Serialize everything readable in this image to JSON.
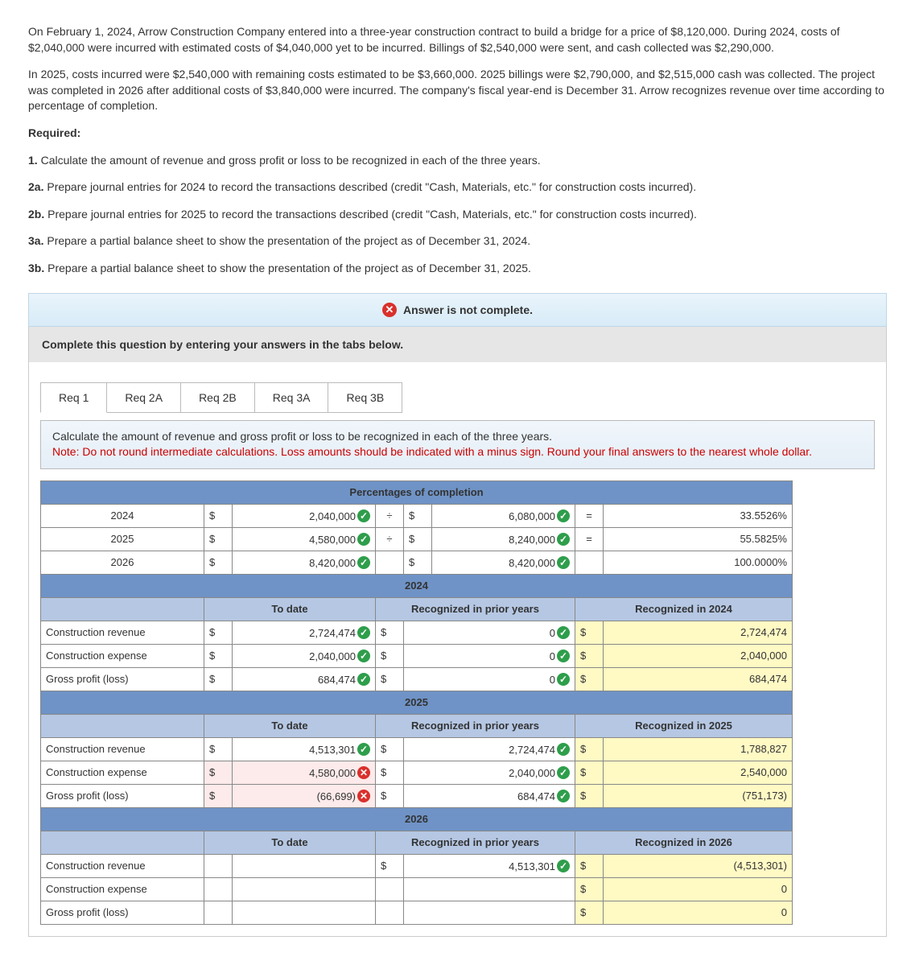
{
  "problem": {
    "p1": "On February 1, 2024, Arrow Construction Company entered into a three-year construction contract to build a bridge for a price of $8,120,000. During 2024, costs of $2,040,000 were incurred with estimated costs of $4,040,000 yet to be incurred. Billings of $2,540,000 were sent, and cash collected was $2,290,000.",
    "p2": "In 2025, costs incurred were $2,540,000 with remaining costs estimated to be $3,660,000. 2025 billings were $2,790,000, and $2,515,000 cash was collected. The project was completed in 2026 after additional costs of $3,840,000 were incurred. The company's fiscal year-end is December 31. Arrow recognizes revenue over time according to percentage of completion.",
    "req_label": "Required:",
    "reqs": [
      "1. Calculate the amount of revenue and gross profit or loss to be recognized in each of the three years.",
      "2a. Prepare journal entries for 2024 to record the transactions described (credit \"Cash, Materials, etc.\" for construction costs incurred).",
      "2b. Prepare journal entries for 2025 to record the transactions described (credit \"Cash, Materials, etc.\" for construction costs incurred).",
      "3a. Prepare a partial balance sheet to show the presentation of the project as of December 31, 2024.",
      "3b. Prepare a partial balance sheet to show the presentation of the project as of December 31, 2025."
    ]
  },
  "status_banner": "Answer is not complete.",
  "instruct": "Complete this question by entering your answers in the tabs below.",
  "tabs": [
    "Req 1",
    "Req 2A",
    "Req 2B",
    "Req 3A",
    "Req 3B"
  ],
  "tab_desc": "Calculate the amount of revenue and gross profit or loss to be recognized in each of the three years.",
  "tab_note": "Note: Do not round intermediate calculations. Loss amounts should be indicated with a minus sign. Round your final answers to the nearest whole dollar.",
  "colors": {
    "header_blue": "#6f93c6",
    "header_lblue": "#b5c7e3",
    "yellow": "#fff9c4",
    "ok": "#2e9e4b",
    "bad": "#d9302c",
    "pink": "#fdeaea"
  },
  "pct_table": {
    "title": "Percentages of completion",
    "rows": [
      {
        "year": "2024",
        "num": "2,040,000",
        "num_ok": true,
        "op": "÷",
        "den": "6,080,000",
        "den_ok": true,
        "eq": "=",
        "pct": "33.5526%"
      },
      {
        "year": "2025",
        "num": "4,580,000",
        "num_ok": true,
        "op": "÷",
        "den": "8,240,000",
        "den_ok": true,
        "eq": "=",
        "pct": "55.5825%"
      },
      {
        "year": "2026",
        "num": "8,420,000",
        "num_ok": true,
        "op": "",
        "den": "8,420,000",
        "den_ok": true,
        "eq": "",
        "pct": "100.0000%"
      }
    ]
  },
  "sections": [
    {
      "year_hdr": "2024",
      "cols": [
        "To date",
        "Recognized in prior years",
        "Recognized in 2024"
      ],
      "rows": [
        {
          "label": "Construction revenue",
          "d1": "$",
          "v1": "2,724,474",
          "m1": "ok",
          "d2": "$",
          "v2": "0",
          "m2": "ok",
          "d3": "$",
          "v3": "2,724,474",
          "y3": true
        },
        {
          "label": "Construction expense",
          "d1": "$",
          "v1": "2,040,000",
          "m1": "ok",
          "d2": "$",
          "v2": "0",
          "m2": "ok",
          "d3": "$",
          "v3": "2,040,000",
          "y3": true
        },
        {
          "label": "Gross profit (loss)",
          "d1": "$",
          "v1": "684,474",
          "m1": "ok",
          "d2": "$",
          "v2": "0",
          "m2": "ok",
          "d3": "$",
          "v3": "684,474",
          "y3": true
        }
      ]
    },
    {
      "year_hdr": "2025",
      "cols": [
        "To date",
        "Recognized in prior years",
        "Recognized in 2025"
      ],
      "rows": [
        {
          "label": "Construction revenue",
          "d1": "$",
          "v1": "4,513,301",
          "m1": "ok",
          "d2": "$",
          "v2": "2,724,474",
          "m2": "ok",
          "d3": "$",
          "v3": "1,788,827",
          "y3": true
        },
        {
          "label": "Construction expense",
          "d1": "$",
          "v1": "4,580,000",
          "m1": "bad",
          "p1": true,
          "d2": "$",
          "v2": "2,040,000",
          "m2": "ok",
          "d3": "$",
          "v3": "2,540,000",
          "y3": true
        },
        {
          "label": "Gross profit (loss)",
          "d1": "$",
          "v1": "(66,699)",
          "m1": "bad",
          "p1": true,
          "d2": "$",
          "v2": "684,474",
          "m2": "ok",
          "d3": "$",
          "v3": "(751,173)",
          "y3": true
        }
      ]
    },
    {
      "year_hdr": "2026",
      "cols": [
        "To date",
        "Recognized in prior years",
        "Recognized in 2026"
      ],
      "rows": [
        {
          "label": "Construction revenue",
          "d1": "",
          "v1": "",
          "m1": "",
          "d2": "$",
          "v2": "4,513,301",
          "m2": "ok",
          "d3": "$",
          "v3": "(4,513,301)",
          "y3": true
        },
        {
          "label": "Construction expense",
          "d1": "",
          "v1": "",
          "m1": "",
          "d2": "",
          "v2": "",
          "m2": "",
          "d3": "$",
          "v3": "0",
          "y3": true
        },
        {
          "label": "Gross profit (loss)",
          "d1": "",
          "v1": "",
          "m1": "",
          "d2": "",
          "v2": "",
          "m2": "",
          "d3": "$",
          "v3": "0",
          "y3": true
        }
      ]
    }
  ]
}
